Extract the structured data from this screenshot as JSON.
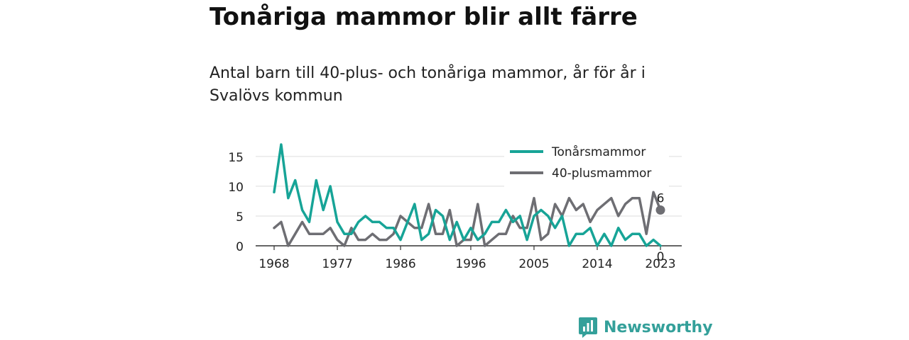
{
  "header": {
    "title": "Tonåriga mammor blir allt färre",
    "subtitle": "Antal barn till 40-plus- och tonåriga mammor, år för år i Svalövs kommun"
  },
  "logo": {
    "text": "Newsworthy",
    "icon": "newsworthy-logo-icon",
    "color": "#34a09a"
  },
  "chart_data": {
    "type": "line",
    "title": "",
    "xlabel": "",
    "ylabel": "",
    "xlim": [
      1968,
      2023
    ],
    "ylim": [
      0,
      17
    ],
    "x_ticks": [
      1968,
      1977,
      1986,
      1996,
      2005,
      2014,
      2023
    ],
    "x_tick_labels": [
      "1968",
      "1977",
      "1986",
      "1996",
      "2005",
      "2014",
      "2023"
    ],
    "y_ticks": [
      0,
      5,
      10,
      15
    ],
    "y_tick_labels": [
      "0",
      "5",
      "10",
      "15"
    ],
    "grid": "horizontal",
    "legend_position": "top-right",
    "x": [
      1968,
      1969,
      1970,
      1971,
      1972,
      1973,
      1974,
      1975,
      1976,
      1977,
      1978,
      1979,
      1980,
      1981,
      1982,
      1983,
      1984,
      1985,
      1986,
      1987,
      1988,
      1989,
      1990,
      1991,
      1992,
      1993,
      1994,
      1995,
      1996,
      1997,
      1998,
      1999,
      2000,
      2001,
      2002,
      2003,
      2004,
      2005,
      2006,
      2007,
      2008,
      2009,
      2010,
      2011,
      2012,
      2013,
      2014,
      2015,
      2016,
      2017,
      2018,
      2019,
      2020,
      2021,
      2022,
      2023
    ],
    "series": [
      {
        "name": "Tonårsmammor",
        "color": "#17a497",
        "values": [
          9,
          17,
          8,
          11,
          6,
          4,
          11,
          6,
          10,
          4,
          2,
          2,
          4,
          5,
          4,
          4,
          3,
          3,
          1,
          4,
          7,
          1,
          2,
          6,
          5,
          1,
          4,
          1,
          3,
          1,
          2,
          4,
          4,
          6,
          4,
          5,
          1,
          5,
          6,
          5,
          3,
          5,
          0,
          2,
          2,
          3,
          0,
          2,
          0,
          3,
          1,
          2,
          2,
          0,
          1,
          0
        ],
        "end_label": "0"
      },
      {
        "name": "40-plusmammor",
        "color": "#6e6e73",
        "values": [
          3,
          4,
          0,
          2,
          4,
          2,
          2,
          2,
          3,
          1,
          0,
          3,
          1,
          1,
          2,
          1,
          1,
          2,
          5,
          4,
          3,
          3,
          7,
          2,
          2,
          6,
          0,
          1,
          1,
          7,
          0,
          1,
          2,
          2,
          5,
          3,
          3,
          8,
          1,
          2,
          7,
          5,
          8,
          6,
          7,
          4,
          6,
          7,
          8,
          5,
          7,
          8,
          8,
          2,
          9,
          6
        ],
        "end_label": "6"
      }
    ]
  }
}
